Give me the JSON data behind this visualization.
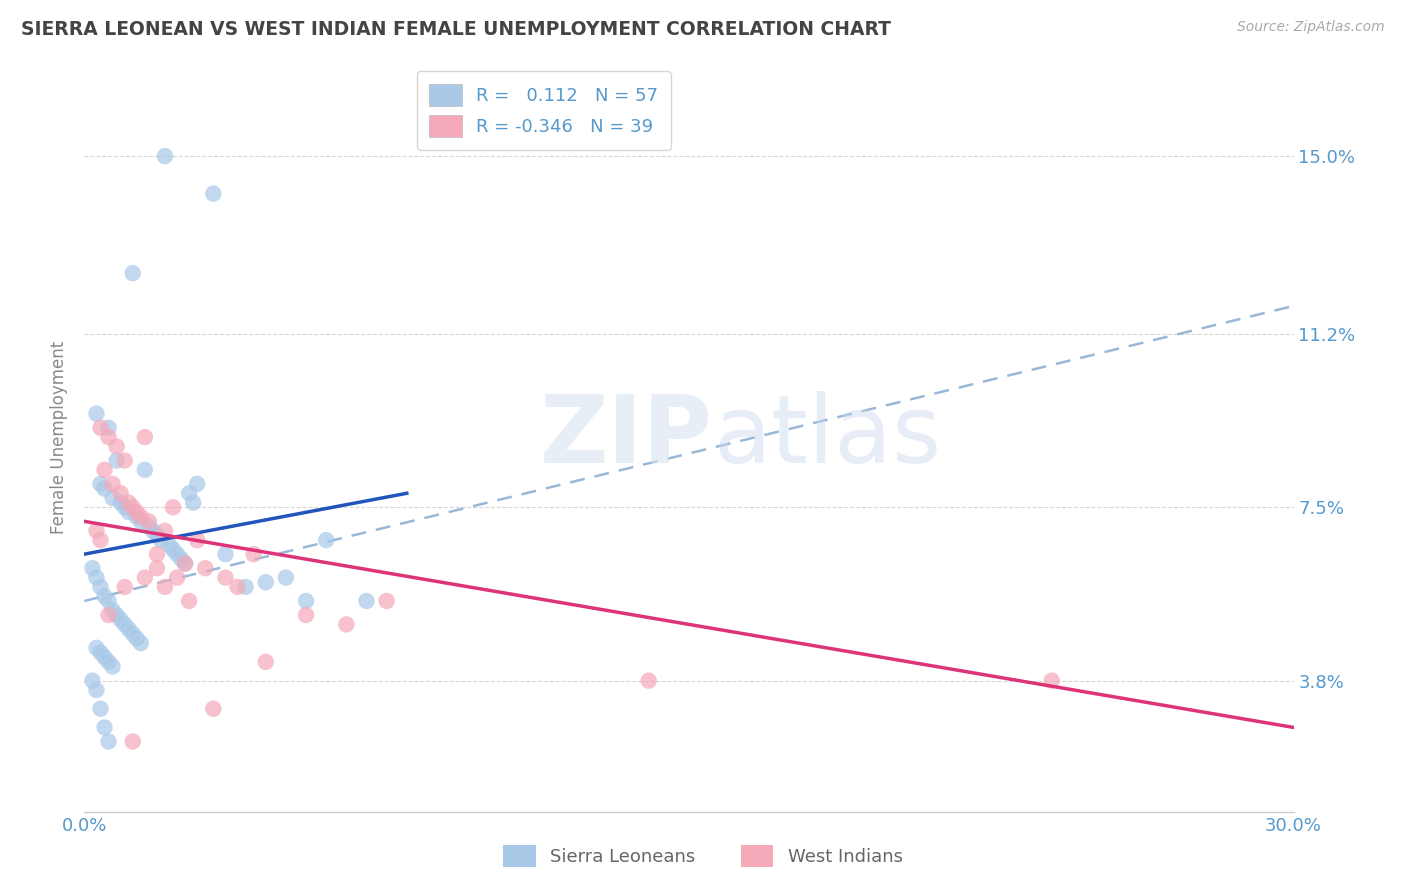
{
  "title": "SIERRA LEONEAN VS WEST INDIAN FEMALE UNEMPLOYMENT CORRELATION CHART",
  "source": "Source: ZipAtlas.com",
  "ylabel": "Female Unemployment",
  "y_ticks": [
    3.8,
    7.5,
    11.2,
    15.0
  ],
  "x_range": [
    0.0,
    30.0
  ],
  "y_range": [
    1.0,
    17.0
  ],
  "blue_R": 0.112,
  "blue_N": 57,
  "pink_R": -0.346,
  "pink_N": 39,
  "blue_color": "#a8c8e8",
  "pink_color": "#f4a8b8",
  "blue_trend_color": "#2255bb",
  "pink_trend_color": "#dd3377",
  "blue_dashed_color": "#99b8d8",
  "background_color": "#ffffff",
  "grid_color": "#cccccc",
  "title_color": "#444444",
  "axis_label_color": "#5599cc",
  "watermark_zip": "ZIP",
  "watermark_atlas": "atlas",
  "sierra_x": [
    2.0,
    3.2,
    1.2,
    0.3,
    0.6,
    0.8,
    1.5,
    0.4,
    0.5,
    0.7,
    0.9,
    1.0,
    1.1,
    1.3,
    1.4,
    1.6,
    1.7,
    1.8,
    1.9,
    2.1,
    2.2,
    2.3,
    2.4,
    2.5,
    2.6,
    2.7,
    2.8,
    0.2,
    0.3,
    0.4,
    0.5,
    0.6,
    0.7,
    0.8,
    0.9,
    1.0,
    1.1,
    1.2,
    1.3,
    1.4,
    0.3,
    0.4,
    0.5,
    0.6,
    0.7,
    3.5,
    4.0,
    5.0,
    5.5,
    0.2,
    0.3,
    4.5,
    6.0,
    0.4,
    7.0,
    0.5,
    0.6
  ],
  "sierra_y": [
    15.0,
    14.2,
    12.5,
    9.5,
    9.2,
    8.5,
    8.3,
    8.0,
    7.9,
    7.7,
    7.6,
    7.5,
    7.4,
    7.3,
    7.2,
    7.1,
    7.0,
    6.9,
    6.8,
    6.7,
    6.6,
    6.5,
    6.4,
    6.3,
    7.8,
    7.6,
    8.0,
    6.2,
    6.0,
    5.8,
    5.6,
    5.5,
    5.3,
    5.2,
    5.1,
    5.0,
    4.9,
    4.8,
    4.7,
    4.6,
    4.5,
    4.4,
    4.3,
    4.2,
    4.1,
    6.5,
    5.8,
    6.0,
    5.5,
    3.8,
    3.6,
    5.9,
    6.8,
    3.2,
    5.5,
    2.8,
    2.5
  ],
  "west_x": [
    0.4,
    0.6,
    0.8,
    1.0,
    0.5,
    0.7,
    0.9,
    1.1,
    1.2,
    1.3,
    1.4,
    1.5,
    0.3,
    0.4,
    1.6,
    1.8,
    2.0,
    2.5,
    3.0,
    3.5,
    2.2,
    2.8,
    3.8,
    5.5,
    4.2,
    2.6,
    1.5,
    2.0,
    6.5,
    7.5,
    1.0,
    1.8,
    4.5,
    2.3,
    14.0,
    24.0,
    3.2,
    0.6,
    1.2
  ],
  "west_y": [
    9.2,
    9.0,
    8.8,
    8.5,
    8.3,
    8.0,
    7.8,
    7.6,
    7.5,
    7.4,
    7.3,
    9.0,
    7.0,
    6.8,
    7.2,
    6.5,
    7.0,
    6.3,
    6.2,
    6.0,
    7.5,
    6.8,
    5.8,
    5.2,
    6.5,
    5.5,
    6.0,
    5.8,
    5.0,
    5.5,
    5.8,
    6.2,
    4.2,
    6.0,
    3.8,
    3.8,
    3.2,
    5.2,
    2.5
  ],
  "blue_trend_x0": 0.0,
  "blue_trend_x1": 8.0,
  "blue_trend_y0": 6.5,
  "blue_trend_y1": 7.8,
  "blue_dashed_x0": 0.0,
  "blue_dashed_x1": 30.0,
  "blue_dashed_y0": 5.5,
  "blue_dashed_y1": 11.8,
  "pink_trend_x0": 0.0,
  "pink_trend_x1": 30.0,
  "pink_trend_y0": 7.2,
  "pink_trend_y1": 2.8
}
